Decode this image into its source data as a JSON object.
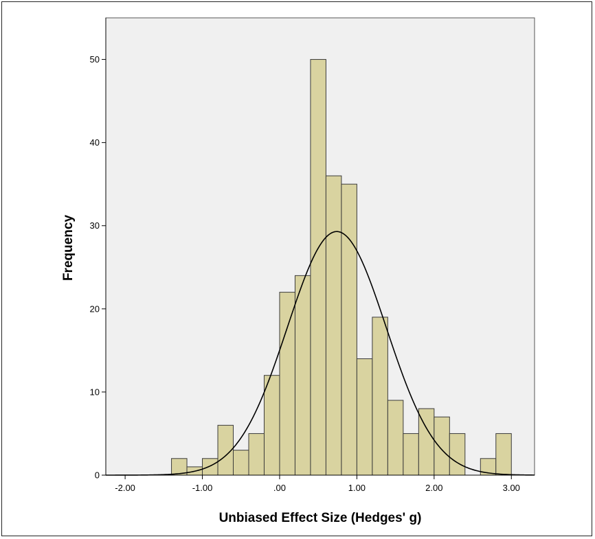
{
  "chart_data": {
    "type": "bar",
    "title": "",
    "xlabel": "Unbiased Effect Size (Hedges' g)",
    "ylabel": "Frequency",
    "xlim": [
      -2.25,
      3.3
    ],
    "ylim": [
      0,
      55
    ],
    "x_ticks": [
      {
        "value": -2,
        "label": "-2.00"
      },
      {
        "value": -1,
        "label": "-1.00"
      },
      {
        "value": 0,
        "label": ".00"
      },
      {
        "value": 1,
        "label": "1.00"
      },
      {
        "value": 2,
        "label": "2.00"
      },
      {
        "value": 3,
        "label": "3.00"
      }
    ],
    "y_ticks": [
      {
        "value": 0,
        "label": "0"
      },
      {
        "value": 10,
        "label": "10"
      },
      {
        "value": 20,
        "label": "20"
      },
      {
        "value": 30,
        "label": "30"
      },
      {
        "value": 40,
        "label": "40"
      },
      {
        "value": 50,
        "label": "50"
      }
    ],
    "bin_width": 0.2,
    "bin_starts": [
      -1.4,
      -1.2,
      -1.0,
      -0.8,
      -0.6,
      -0.4,
      -0.2,
      0.0,
      0.2,
      0.4,
      0.6,
      0.8,
      1.0,
      1.2,
      1.4,
      1.6,
      1.8,
      2.0,
      2.2,
      2.4,
      2.6,
      2.8
    ],
    "values": [
      2,
      1,
      2,
      6,
      3,
      5,
      12,
      22,
      24,
      50,
      36,
      35,
      14,
      19,
      9,
      5,
      8,
      7,
      5,
      0,
      2,
      5
    ],
    "normal_curve": {
      "mean": 0.74,
      "sd": 0.64,
      "peak": 29.3
    },
    "colors": {
      "bar_fill": "#d9d3a0",
      "bar_stroke": "#3a3a3a",
      "plot_background": "#f0f0f0",
      "curve": "#000000"
    },
    "grid": false,
    "legend": "none"
  }
}
